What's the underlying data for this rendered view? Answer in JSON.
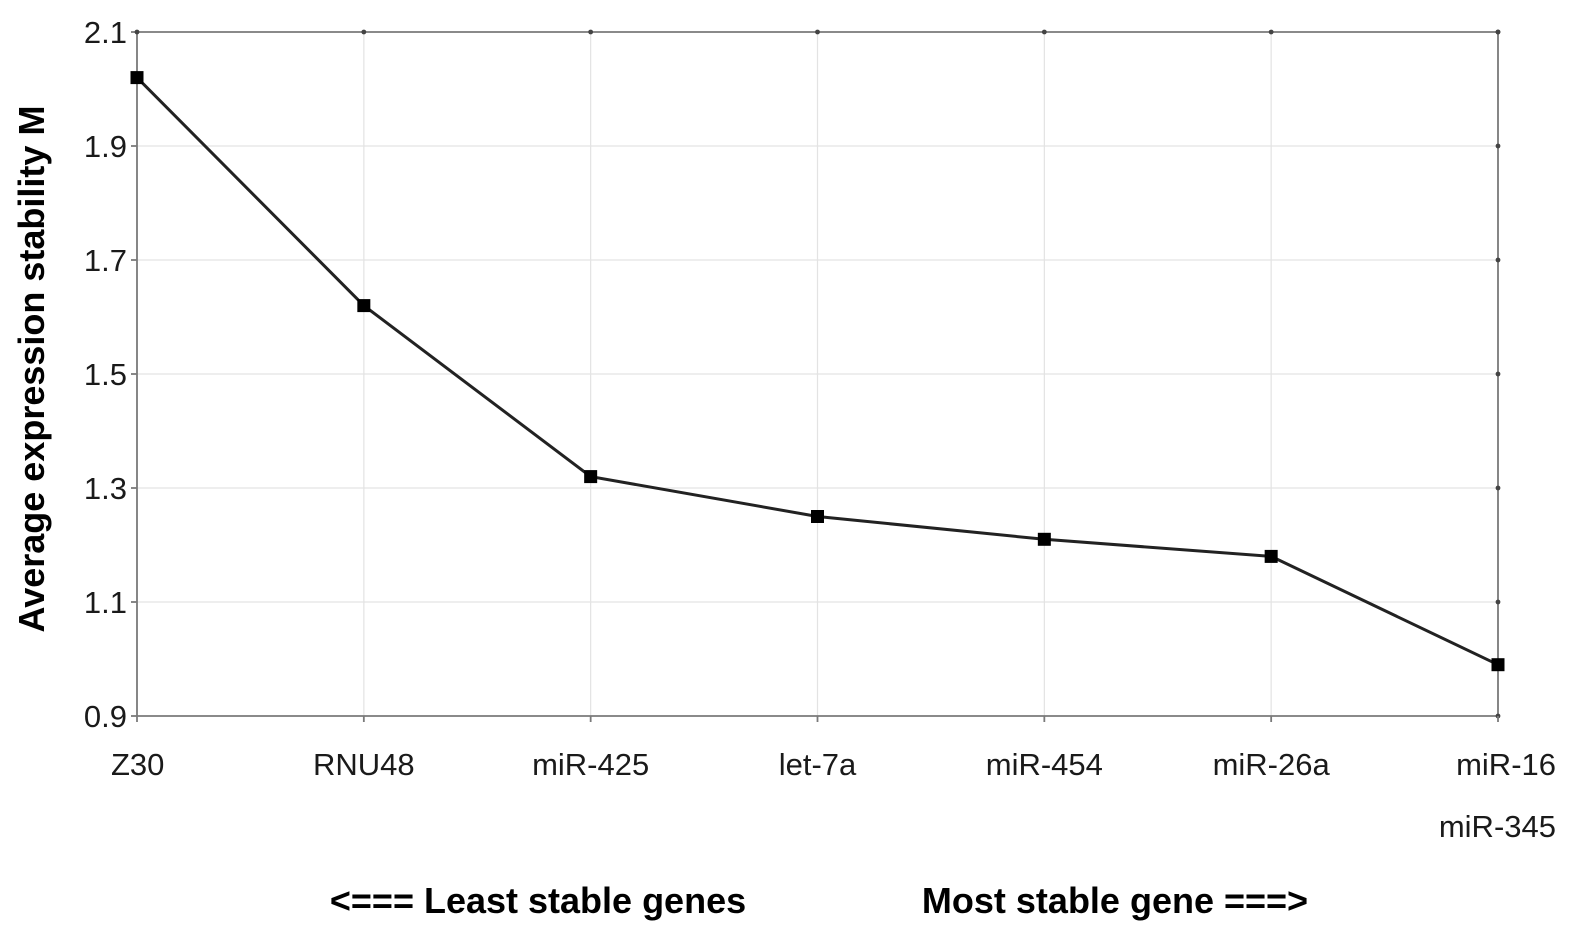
{
  "chart_data": {
    "type": "line",
    "categories": [
      "Z30",
      "RNU48",
      "miR-425",
      "let-7a",
      "miR-454",
      "miR-26a",
      "miR-16"
    ],
    "category_sublabels": [
      "",
      "",
      "",
      "",
      "",
      "",
      "miR-345"
    ],
    "series": [
      {
        "values": [
          2.02,
          1.62,
          1.32,
          1.25,
          1.21,
          1.18,
          0.99
        ]
      }
    ],
    "ylabel": "Average expression stability M",
    "xlabel_left": "<=== Least stable genes",
    "xlabel_right": "Most stable gene ===>",
    "ylim": [
      0.9,
      2.1
    ],
    "yticks": [
      "0.9",
      "1.1",
      "1.3",
      "1.5",
      "1.7",
      "1.9",
      "2.1"
    ],
    "grid": true,
    "colors": {
      "line": "#222222",
      "marker": "#000000",
      "grid": "#e3e3e3",
      "axis": "#7a7a7a"
    }
  }
}
